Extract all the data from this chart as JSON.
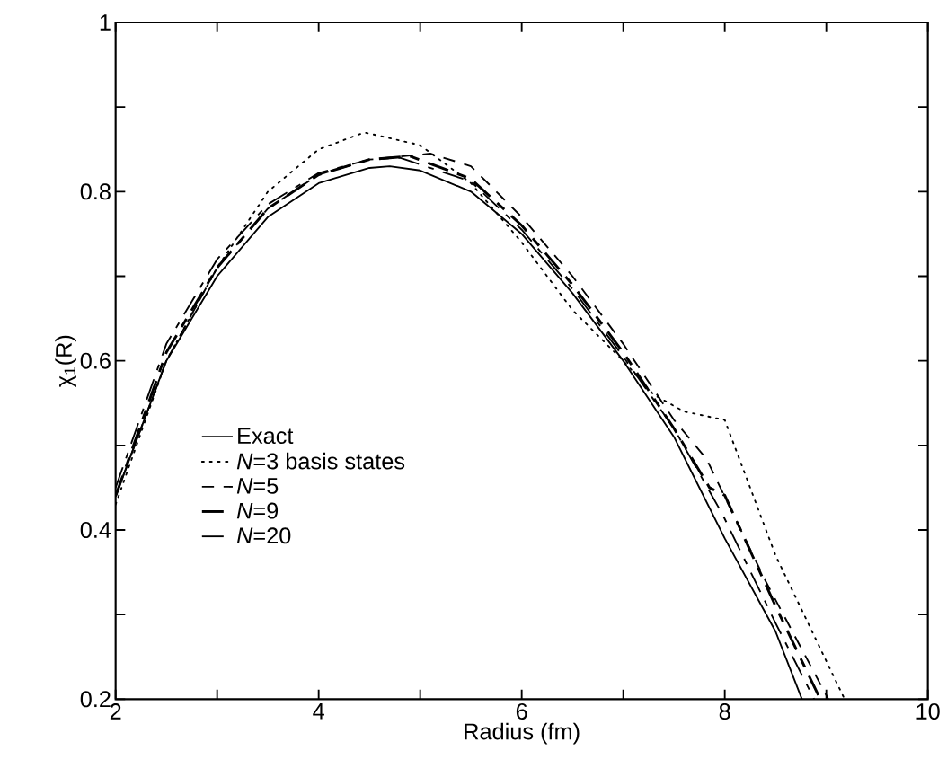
{
  "chart_data": {
    "type": "line",
    "xlabel": "Radius (fm)",
    "ylabel": "χ$_{1}$(R)",
    "xlim": [
      2,
      10
    ],
    "ylim": [
      0.2,
      1
    ],
    "xticks": [
      2,
      {
        "value": 3,
        "label": null
      },
      4,
      {
        "value": 5,
        "label": null
      },
      6,
      {
        "value": 7,
        "label": null
      },
      8,
      {
        "value": 9,
        "label": null
      },
      10
    ],
    "yticks": [
      0.2,
      {
        "value": 0.3,
        "label": null
      },
      0.4,
      {
        "value": 0.5,
        "label": null
      },
      0.6,
      {
        "value": 0.7,
        "label": null
      },
      0.8,
      {
        "value": 0.9,
        "label": null
      },
      1
    ],
    "legend": "bottom left",
    "grid": false,
    "marker": "none",
    "series": [
      {
        "name": "Exact",
        "color": "#000000",
        "line_style": "solid",
        "x": [
          2.0,
          2.5,
          3.0,
          3.5,
          4.0,
          4.5,
          4.7,
          5.0,
          5.5,
          6.0,
          6.5,
          7.0,
          7.5,
          8.0,
          8.5,
          8.76
        ],
        "values": [
          0.44,
          0.6,
          0.7,
          0.77,
          0.81,
          0.828,
          0.83,
          0.825,
          0.8,
          0.75,
          0.68,
          0.6,
          0.51,
          0.39,
          0.28,
          0.2
        ]
      },
      {
        "name": "*N*=3 basis states",
        "color": "#000000",
        "line_style": "dotted",
        "x": [
          2.0,
          2.5,
          3.0,
          3.5,
          4.0,
          4.45,
          5.0,
          5.5,
          6.0,
          6.5,
          7.0,
          7.3,
          7.6,
          8.0,
          8.5,
          9.18
        ],
        "values": [
          0.43,
          0.6,
          0.71,
          0.8,
          0.85,
          0.87,
          0.855,
          0.81,
          0.74,
          0.66,
          0.6,
          0.56,
          0.54,
          0.53,
          0.37,
          0.2
        ]
      },
      {
        "name": "*N*=5",
        "color": "#000000",
        "line_style": "dashed",
        "x": [
          2.0,
          2.5,
          3.0,
          3.5,
          4.0,
          4.5,
          5.1,
          5.5,
          6.0,
          6.5,
          7.0,
          7.5,
          7.82,
          8.4,
          9.02
        ],
        "values": [
          0.44,
          0.6,
          0.71,
          0.78,
          0.82,
          0.838,
          0.845,
          0.83,
          0.77,
          0.7,
          0.62,
          0.53,
          0.484,
          0.34,
          0.2
        ]
      },
      {
        "name": "*N*=9",
        "color": "#000000",
        "line_style": "dashed",
        "x": [
          2.0,
          2.5,
          3.0,
          3.5,
          4.0,
          4.5,
          4.9,
          5.5,
          6.0,
          6.5,
          7.0,
          7.5,
          7.85,
          8.0,
          8.5,
          8.94
        ],
        "values": [
          0.44,
          0.61,
          0.71,
          0.78,
          0.82,
          0.838,
          0.842,
          0.815,
          0.76,
          0.69,
          0.61,
          0.52,
          0.45,
          0.441,
          0.31,
          0.2
        ]
      },
      {
        "name": "*N*=20",
        "color": "#000000",
        "line_style": "dashed",
        "x": [
          2.0,
          2.5,
          3.0,
          3.5,
          4.0,
          4.5,
          4.8,
          5.5,
          6.0,
          6.5,
          7.0,
          7.5,
          7.98,
          8.5,
          8.88
        ],
        "values": [
          0.45,
          0.62,
          0.72,
          0.785,
          0.822,
          0.838,
          0.84,
          0.812,
          0.755,
          0.685,
          0.605,
          0.52,
          0.418,
          0.29,
          0.2
        ]
      }
    ]
  }
}
